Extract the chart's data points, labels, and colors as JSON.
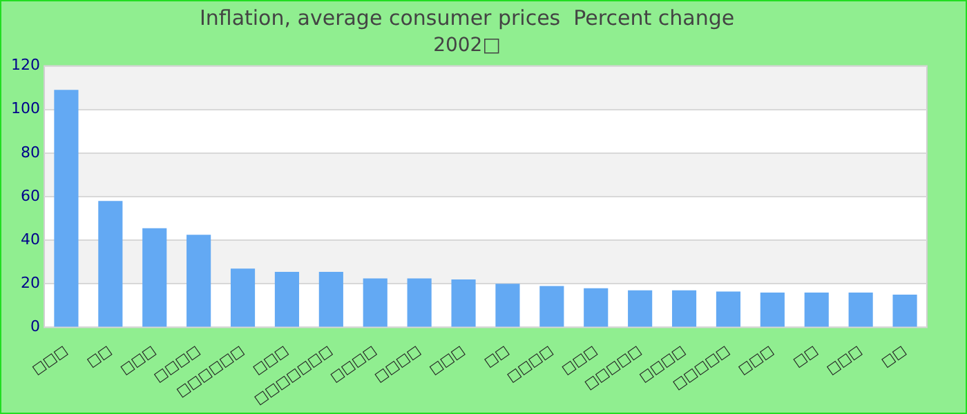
{
  "chart_data": {
    "type": "bar",
    "title": "Inflation, average consumer prices  Percent change",
    "subtitle": "2002□",
    "categories": [
      "□□□",
      "□□",
      "□□□",
      "□□□□",
      "□□□□□□",
      "□□□",
      "□□□□□□□",
      "□□□□",
      "□□□□",
      "□□□",
      "□□",
      "□□□□",
      "□□□",
      "□□□□□",
      "□□□□",
      "□□□□□",
      "□□□",
      "□□",
      "□□□",
      "□□"
    ],
    "values": [
      109,
      58,
      45.5,
      42.5,
      27,
      25.5,
      25.5,
      22.5,
      22.5,
      22,
      20,
      19,
      18,
      17,
      17,
      16.5,
      16,
      16,
      16,
      15
    ],
    "color": "#63a9f3",
    "ylim": [
      0,
      120
    ],
    "yticks": [
      0,
      20,
      40,
      60,
      80,
      100,
      120
    ],
    "grid": true
  }
}
